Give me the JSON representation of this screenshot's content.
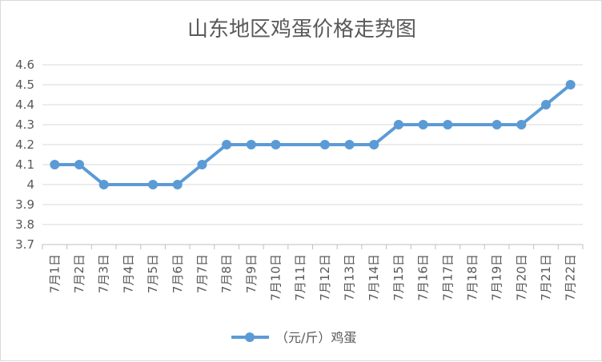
{
  "chart_data": {
    "type": "line",
    "title": "山东地区鸡蛋价格走势图",
    "xlabel": "",
    "ylabel": "",
    "categories": [
      "7月1日",
      "7月2日",
      "7月3日",
      "7月4日",
      "7月5日",
      "7月6日",
      "7月7日",
      "7月8日",
      "7月9日",
      "7月10日",
      "7月11日",
      "7月12日",
      "7月13日",
      "7月14日",
      "7月15日",
      "7月16日",
      "7月17日",
      "7月18日",
      "7月19日",
      "7月20日",
      "7月21日",
      "7月22日"
    ],
    "series": [
      {
        "name": "（元/斤）鸡蛋",
        "color": "#5b9bd5",
        "values": [
          4.1,
          4.1,
          4.0,
          null,
          4.0,
          4.0,
          4.1,
          4.2,
          4.2,
          4.2,
          null,
          4.2,
          4.2,
          4.2,
          4.3,
          4.3,
          4.3,
          null,
          4.3,
          4.3,
          4.4,
          4.5
        ]
      }
    ],
    "ylim": [
      3.7,
      4.6
    ],
    "yticks": [
      "3.7",
      "3.8",
      "3.9",
      "4",
      "4.1",
      "4.2",
      "4.3",
      "4.4",
      "4.5",
      "4.6"
    ],
    "grid": true,
    "legend": "bottom"
  }
}
